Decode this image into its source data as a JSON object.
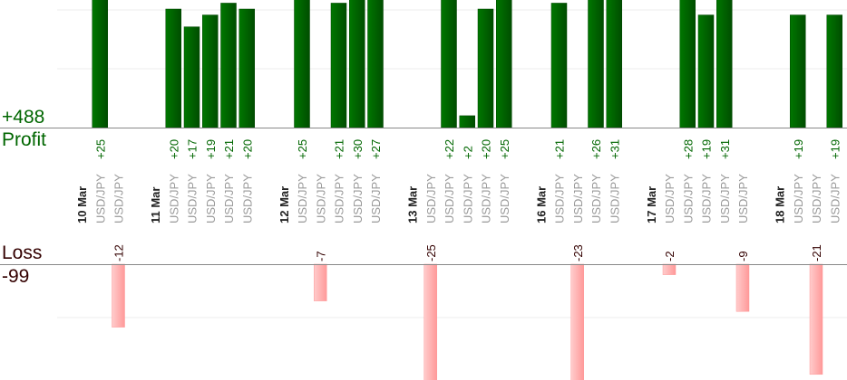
{
  "chart_data": {
    "type": "bar",
    "profit_label": "Profit",
    "profit_total": "+488",
    "loss_label": "Loss",
    "loss_total": "-99",
    "colors": {
      "profit": "#006600",
      "profit_text": "#006600",
      "loss": "#ffaaaa",
      "loss_text": "#330000",
      "pair_text": "#999999",
      "date_text": "#222222"
    },
    "slots": [
      {
        "date": "10 Mar"
      },
      {
        "pair": "USD/JPY",
        "value": 25,
        "label": "+25"
      },
      {
        "pair": "USD/JPY",
        "value": -12,
        "label": "-12"
      },
      {},
      {
        "date": "11 Mar"
      },
      {
        "pair": "USD/JPY",
        "value": 20,
        "label": "+20"
      },
      {
        "pair": "USD/JPY",
        "value": 17,
        "label": "+17"
      },
      {
        "pair": "USD/JPY",
        "value": 19,
        "label": "+19"
      },
      {
        "pair": "USD/JPY",
        "value": 21,
        "label": "+21"
      },
      {
        "pair": "USD/JPY",
        "value": 20,
        "label": "+20"
      },
      {},
      {
        "date": "12 Mar"
      },
      {
        "pair": "USD/JPY",
        "value": 25,
        "label": "+25"
      },
      {
        "pair": "USD/JPY",
        "value": -7,
        "label": "-7"
      },
      {
        "pair": "USD/JPY",
        "value": 21,
        "label": "+21"
      },
      {
        "pair": "USD/JPY",
        "value": 30,
        "label": "+30"
      },
      {
        "pair": "USD/JPY",
        "value": 27,
        "label": "+27"
      },
      {},
      {
        "date": "13 Mar"
      },
      {
        "pair": "USD/JPY",
        "value": -25,
        "label": "-25"
      },
      {
        "pair": "USD/JPY",
        "value": 22,
        "label": "+22"
      },
      {
        "pair": "USD/JPY",
        "value": 2,
        "label": "+2"
      },
      {
        "pair": "USD/JPY",
        "value": 20,
        "label": "+20"
      },
      {
        "pair": "USD/JPY",
        "value": 25,
        "label": "+25"
      },
      {},
      {
        "date": "16 Mar"
      },
      {
        "pair": "USD/JPY",
        "value": 21,
        "label": "+21"
      },
      {
        "pair": "USD/JPY",
        "value": -23,
        "label": "-23"
      },
      {
        "pair": "USD/JPY",
        "value": 26,
        "label": "+26"
      },
      {
        "pair": "USD/JPY",
        "value": 31,
        "label": "+31"
      },
      {},
      {
        "date": "17 Mar"
      },
      {
        "pair": "USD/JPY",
        "value": -2,
        "label": "-2"
      },
      {
        "pair": "USD/JPY",
        "value": 28,
        "label": "+28"
      },
      {
        "pair": "USD/JPY",
        "value": 19,
        "label": "+19"
      },
      {
        "pair": "USD/JPY",
        "value": 31,
        "label": "+31"
      },
      {
        "pair": "USD/JPY",
        "value": -9,
        "label": "-9"
      },
      {},
      {
        "date": "18 Mar"
      },
      {
        "pair": "USD/JPY",
        "value": 19,
        "label": "+19"
      },
      {
        "pair": "USD/JPY",
        "value": -21,
        "label": "-21"
      },
      {
        "pair": "USD/JPY",
        "value": 19,
        "label": "+19"
      }
    ]
  }
}
